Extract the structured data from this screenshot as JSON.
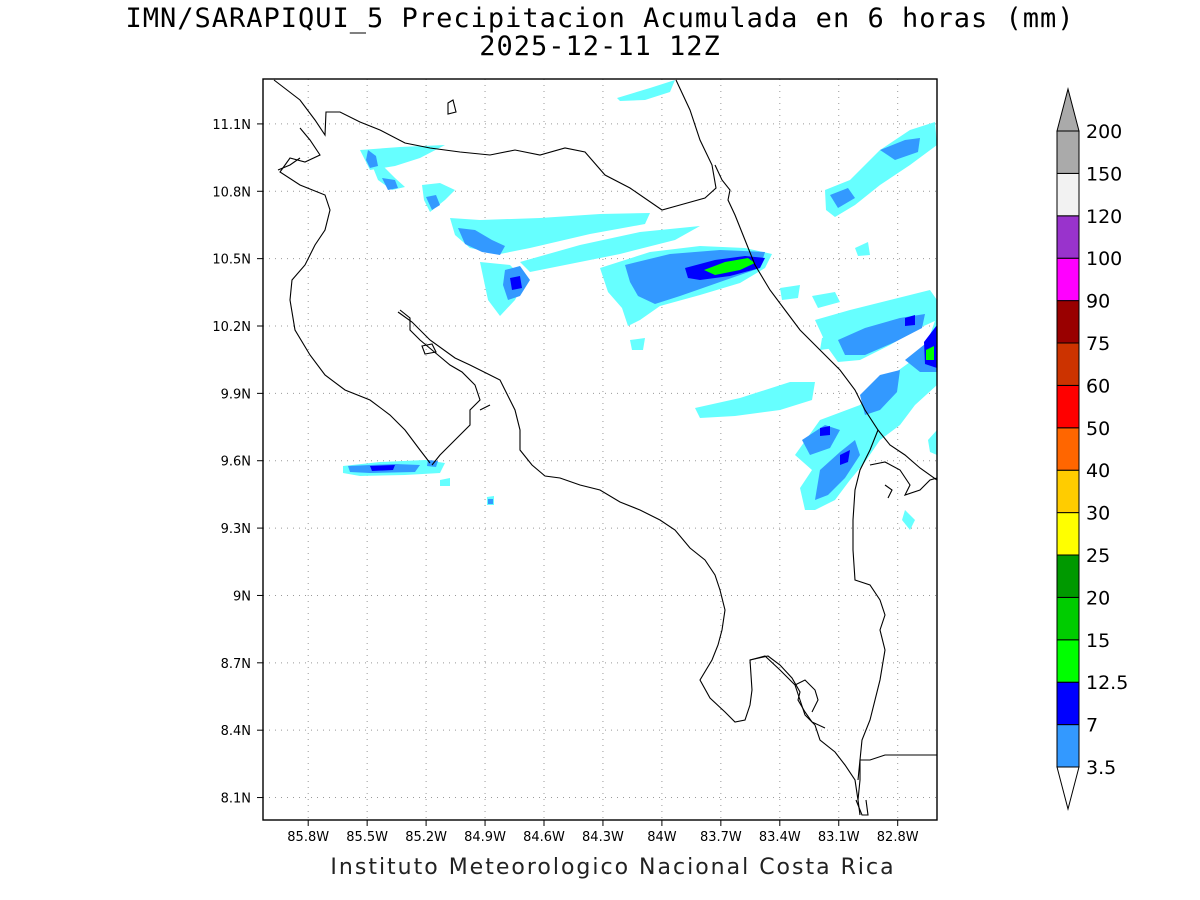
{
  "title_line1": "IMN/SARAPIQUI_5 Precipitacion Acumulada en 6 horas (mm)",
  "title_line2": "2025-12-11 12Z",
  "footer": "Instituto Meteorologico Nacional Costa Rica",
  "map": {
    "lon_range": [
      -86.03,
      -82.6
    ],
    "lat_range": [
      8.0,
      11.3
    ],
    "lon_tick_values": [
      -85.8,
      -85.5,
      -85.2,
      -84.9,
      -84.6,
      -84.3,
      -84.0,
      -83.7,
      -83.4,
      -83.1,
      -82.8
    ],
    "lat_tick_values": [
      8.1,
      8.4,
      8.7,
      9.0,
      9.3,
      9.6,
      9.9,
      10.2,
      10.5,
      10.8,
      11.1
    ],
    "lon_labels": [
      "85.8W",
      "85.5W",
      "85.2W",
      "84.9W",
      "84.6W",
      "84.3W",
      "84W",
      "83.7W",
      "83.4W",
      "83.1W",
      "82.8W"
    ],
    "lat_labels": [
      "8.1N",
      "8.4N",
      "8.7N",
      "9N",
      "9.3N",
      "9.6N",
      "9.9N",
      "10.2N",
      "10.5N",
      "10.8N",
      "11.1N"
    ],
    "grid_lines": "dotted"
  },
  "colorbar": {
    "labels": [
      "3.5",
      "7",
      "12.5",
      "15",
      "20",
      "25",
      "30",
      "40",
      "50",
      "60",
      "75",
      "90",
      "100",
      "120",
      "150",
      "200"
    ],
    "colors": [
      "#66ffff",
      "#3399ff",
      "#0000ff",
      "#00ff00",
      "#00cc00",
      "#009900",
      "#ffff00",
      "#ffcc00",
      "#ff6600",
      "#ff0000",
      "#cc3300",
      "#990000",
      "#ff00ff",
      "#9933cc",
      "#f2f2f2",
      "#aaaaaa"
    ]
  }
}
